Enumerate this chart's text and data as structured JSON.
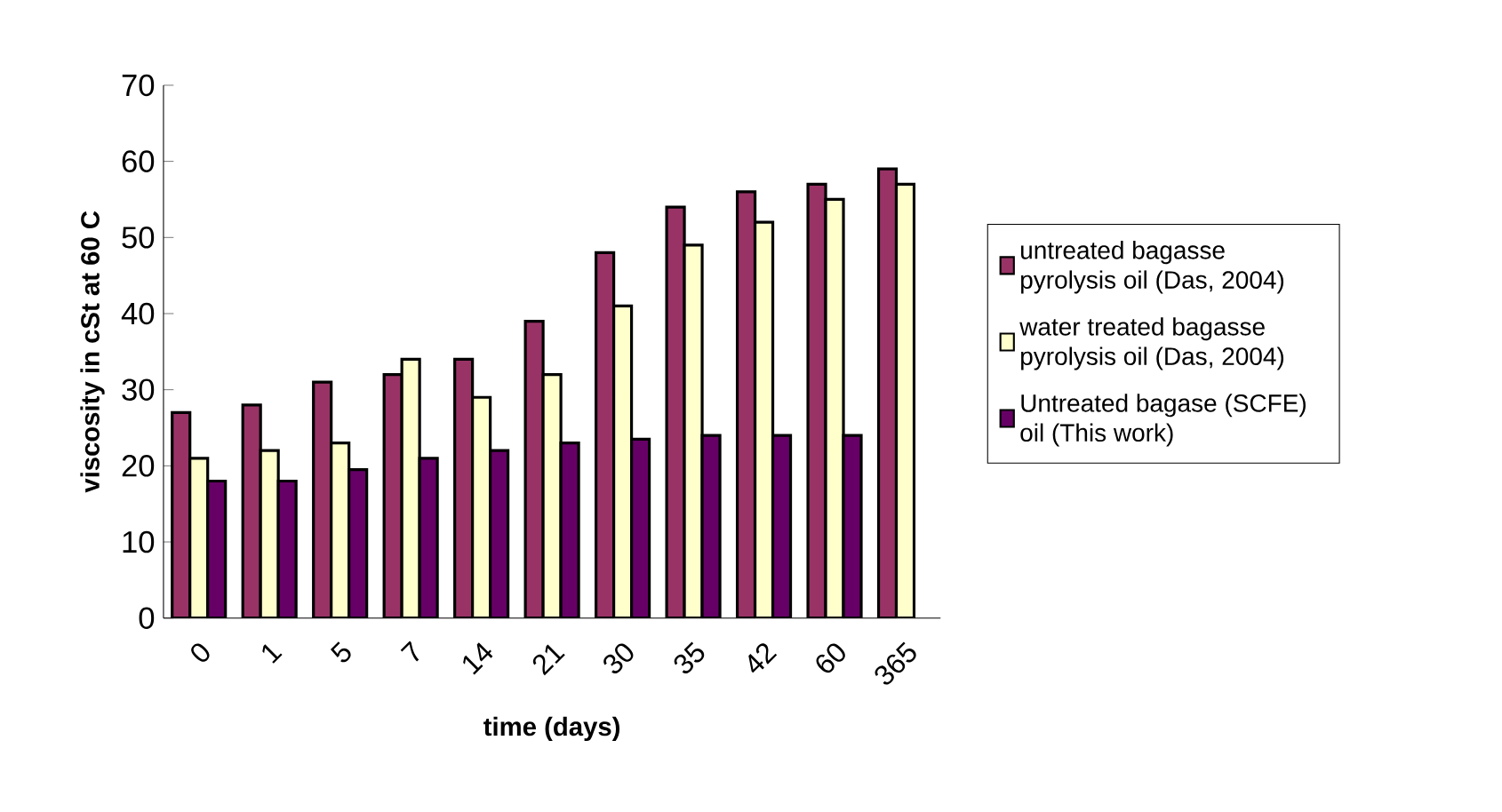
{
  "chart_data": {
    "type": "bar",
    "xlabel": "time (days)",
    "ylabel": "viscosity in cSt at 60 C",
    "categories": [
      "0",
      "1",
      "5",
      "7",
      "14",
      "21",
      "30",
      "35",
      "42",
      "60",
      "365"
    ],
    "series": [
      {
        "name": "untreated bagasse pyrolysis  oil (Das, 2004)",
        "color": "#993366",
        "values": [
          27,
          28,
          31,
          32,
          34,
          39,
          48,
          54,
          56,
          57,
          59
        ]
      },
      {
        "name": "water treated bagasse pyrolysis oil (Das, 2004)",
        "color": "#ffffcc",
        "values": [
          21,
          22,
          23,
          34,
          29,
          32,
          41,
          49,
          52,
          55,
          57
        ]
      },
      {
        "name": "Untreated bagase (SCFE) oil (This work)",
        "color": "#660066",
        "values": [
          18,
          18,
          19.5,
          21,
          22,
          23,
          23.5,
          24,
          24,
          24,
          null
        ]
      }
    ],
    "ylim": [
      0,
      70
    ],
    "yticks": [
      0,
      10,
      20,
      30,
      40,
      50,
      60,
      70
    ],
    "legend": "right"
  }
}
